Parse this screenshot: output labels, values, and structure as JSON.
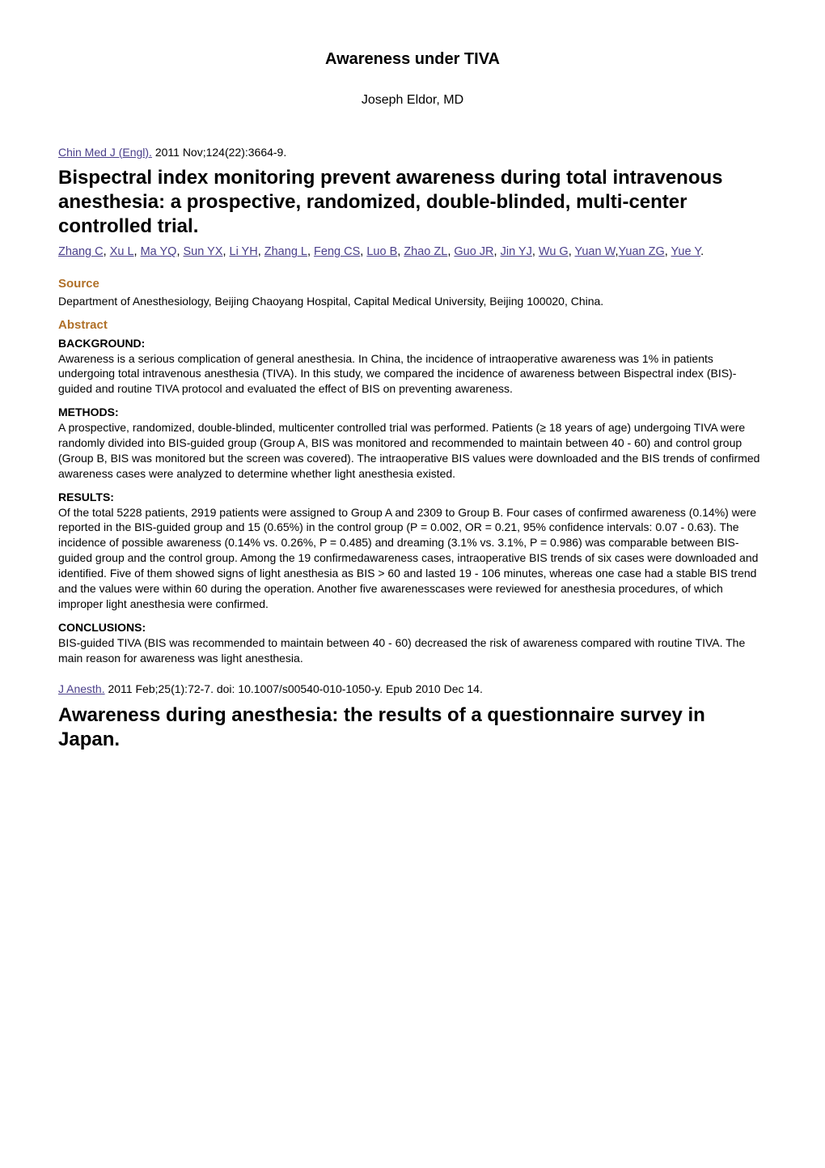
{
  "title": "Awareness under TIVA",
  "author_line": "Joseph Eldor, MD",
  "article1": {
    "journal": "Chin Med J (Engl).",
    "citation_tail": " 2011 Nov;124(22):3664-9.",
    "title": "Bispectral index monitoring prevent awareness during total intravenous anesthesia: a prospective, randomized, double-blinded, multi-center controlled trial.",
    "authors": [
      "Zhang C",
      "Xu L",
      "Ma YQ",
      "Sun YX",
      "Li YH",
      "Zhang L",
      "Feng CS",
      "Luo B",
      "Zhao ZL",
      "Guo JR",
      "Jin YJ",
      "Wu G",
      "Yuan W",
      "Yuan ZG",
      "Yue Y"
    ],
    "source_label": "Source",
    "source_body": "Department of Anesthesiology, Beijing Chaoyang Hospital, Capital Medical University, Beijing 100020, China.",
    "abstract_label": "Abstract",
    "sections": {
      "background": {
        "heading": "BACKGROUND:",
        "body": "Awareness is a serious complication of general anesthesia. In China, the incidence of intraoperative awareness was 1% in patients undergoing total intravenous anesthesia (TIVA). In this study, we compared the incidence of awareness between Bispectral index (BIS)-guided and routine TIVA protocol and evaluated the effect of BIS on preventing awareness."
      },
      "methods": {
        "heading": "METHODS:",
        "body": "A prospective, randomized, double-blinded, multicenter controlled trial was performed. Patients (≥ 18 years of age) undergoing TIVA were randomly divided into BIS-guided group (Group A, BIS was monitored and recommended to maintain between 40 - 60) and control group (Group B, BIS was monitored but the screen was covered). The intraoperative BIS values were downloaded and the BIS trends of confirmed awareness cases were analyzed to determine whether light anesthesia existed."
      },
      "results": {
        "heading": "RESULTS:",
        "body": "Of the total 5228 patients, 2919 patients were assigned to Group A and 2309 to Group B. Four cases of confirmed awareness (0.14%) were reported in the BIS-guided group and 15 (0.65%) in the control group (P = 0.002, OR = 0.21, 95% confidence intervals: 0.07 - 0.63). The incidence of possible awareness (0.14% vs. 0.26%, P = 0.485) and dreaming (3.1% vs. 3.1%, P = 0.986) was comparable between BIS-guided group and the control group. Among the 19 confirmedawareness cases, intraoperative BIS trends of six cases were downloaded and identified. Five of them showed signs of light anesthesia as BIS > 60 and lasted 19 - 106 minutes, whereas one case had a stable BIS trend and the values were within 60 during the operation. Another five awarenesscases were reviewed for anesthesia procedures, of which improper light anesthesia were confirmed."
      },
      "conclusions": {
        "heading": "CONCLUSIONS:",
        "body": "BIS-guided TIVA (BIS was recommended to maintain between 40 - 60) decreased the risk of awareness compared with routine TIVA. The main reason for awareness was light anesthesia."
      }
    }
  },
  "article2": {
    "journal": "J Anesth.",
    "citation_tail": " 2011 Feb;25(1):72-7. doi: 10.1007/s00540-010-1050-y. Epub 2010 Dec 14.",
    "title": "Awareness during anesthesia: the results of a questionnaire survey in Japan."
  },
  "colors": {
    "link": "#4a3f8a",
    "section_label": "#b07028",
    "text": "#000000",
    "bg": "#ffffff"
  },
  "typography": {
    "body_fontsize_pt": 10.5,
    "main_title_fontsize_pt": 15,
    "article_title_fontsize_pt": 18,
    "section_label_fontsize_pt": 11
  }
}
